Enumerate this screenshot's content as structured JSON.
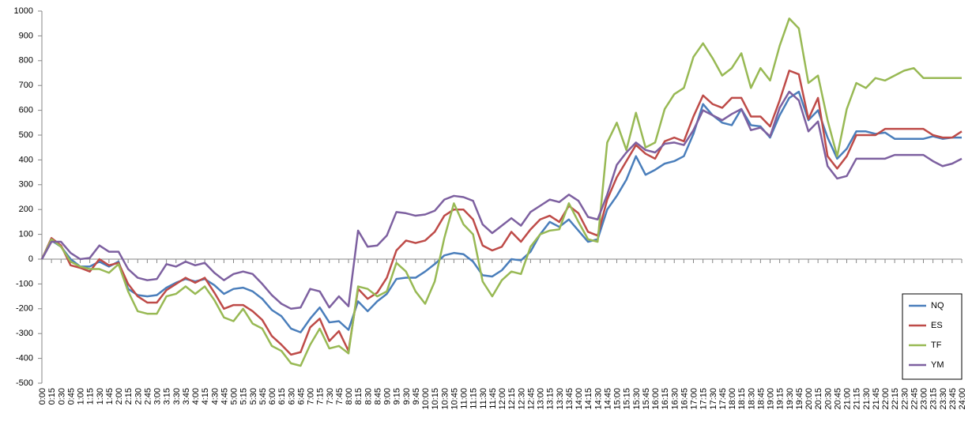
{
  "chart_data": {
    "type": "line",
    "categories": [
      "0:00",
      "0:15",
      "0:30",
      "0:45",
      "1:00",
      "1:15",
      "1:30",
      "1:45",
      "2:00",
      "2:15",
      "2:30",
      "2:45",
      "3:00",
      "3:15",
      "3:30",
      "3:45",
      "4:00",
      "4:15",
      "4:30",
      "4:45",
      "5:00",
      "5:15",
      "5:30",
      "5:45",
      "6:00",
      "6:15",
      "6:30",
      "6:45",
      "7:00",
      "7:15",
      "7:30",
      "7:45",
      "8:00",
      "8:15",
      "8:30",
      "8:45",
      "9:00",
      "9:15",
      "9:30",
      "9:45",
      "10:00",
      "10:15",
      "10:30",
      "10:45",
      "11:00",
      "11:15",
      "11:30",
      "11:45",
      "12:00",
      "12:15",
      "12:30",
      "12:45",
      "13:00",
      "13:15",
      "13:30",
      "13:45",
      "14:00",
      "14:15",
      "14:30",
      "14:45",
      "15:00",
      "15:15",
      "15:30",
      "15:45",
      "16:00",
      "16:15",
      "16:30",
      "16:45",
      "17:00",
      "17:15",
      "17:30",
      "17:45",
      "18:00",
      "18:15",
      "18:30",
      "18:45",
      "19:00",
      "19:15",
      "19:30",
      "19:45",
      "20:00",
      "20:15",
      "20:30",
      "20:45",
      "21:00",
      "21:15",
      "21:30",
      "21:45",
      "22:00",
      "22:15",
      "22:30",
      "22:45",
      "23:00",
      "23:15",
      "23:30",
      "23:45",
      "24:00"
    ],
    "series": [
      {
        "name": "NQ",
        "color": "#4a7ebb",
        "values": [
          0,
          75,
          50,
          0,
          -30,
          -30,
          -10,
          -30,
          -10,
          -120,
          -145,
          -150,
          -145,
          -115,
          -95,
          -80,
          -90,
          -80,
          -105,
          -140,
          -120,
          -115,
          -130,
          -160,
          -205,
          -230,
          -280,
          -295,
          -240,
          -195,
          -255,
          -250,
          -285,
          -170,
          -210,
          -170,
          -140,
          -80,
          -75,
          -75,
          -50,
          -20,
          15,
          25,
          20,
          -10,
          -65,
          -70,
          -45,
          0,
          -5,
          30,
          100,
          150,
          130,
          160,
          115,
          70,
          80,
          200,
          255,
          320,
          415,
          340,
          360,
          385,
          395,
          415,
          505,
          625,
          580,
          550,
          540,
          605,
          540,
          535,
          490,
          580,
          650,
          675,
          560,
          600,
          490,
          405,
          445,
          515,
          515,
          505,
          510,
          485,
          485,
          485,
          485,
          495,
          485,
          490,
          490
        ]
      },
      {
        "name": "ES",
        "color": "#be4b48",
        "values": [
          0,
          85,
          55,
          -25,
          -35,
          -50,
          0,
          -25,
          -15,
          -100,
          -150,
          -175,
          -175,
          -125,
          -100,
          -75,
          -95,
          -75,
          -135,
          -200,
          -185,
          -185,
          -210,
          -245,
          -310,
          -345,
          -385,
          -375,
          -275,
          -240,
          -330,
          -290,
          -370,
          -120,
          -160,
          -135,
          -75,
          35,
          75,
          65,
          75,
          110,
          175,
          200,
          200,
          160,
          55,
          35,
          50,
          110,
          70,
          120,
          160,
          175,
          150,
          215,
          185,
          110,
          95,
          240,
          330,
          395,
          460,
          425,
          405,
          475,
          490,
          475,
          575,
          660,
          625,
          610,
          650,
          650,
          575,
          575,
          535,
          640,
          760,
          745,
          565,
          650,
          415,
          365,
          415,
          500,
          500,
          500,
          525,
          525,
          525,
          525,
          525,
          500,
          490,
          490,
          515
        ]
      },
      {
        "name": "TF",
        "color": "#98b954",
        "values": [
          0,
          80,
          50,
          -10,
          -30,
          -40,
          -40,
          -55,
          -20,
          -130,
          -210,
          -220,
          -220,
          -150,
          -140,
          -110,
          -140,
          -110,
          -165,
          -235,
          -250,
          -200,
          -260,
          -280,
          -350,
          -370,
          -420,
          -430,
          -345,
          -280,
          -360,
          -350,
          -380,
          -110,
          -120,
          -150,
          -130,
          -15,
          -50,
          -130,
          -180,
          -90,
          85,
          225,
          140,
          100,
          -90,
          -150,
          -85,
          -50,
          -60,
          50,
          100,
          115,
          120,
          225,
          150,
          80,
          70,
          470,
          550,
          440,
          590,
          450,
          470,
          605,
          665,
          690,
          815,
          870,
          810,
          740,
          770,
          830,
          690,
          770,
          720,
          860,
          970,
          930,
          710,
          740,
          560,
          415,
          605,
          710,
          690,
          730,
          720,
          740,
          760,
          770,
          730,
          730,
          730,
          730,
          730
        ]
      },
      {
        "name": "YM",
        "color": "#7d60a0",
        "values": [
          0,
          70,
          70,
          25,
          0,
          5,
          55,
          30,
          30,
          -40,
          -75,
          -85,
          -80,
          -20,
          -30,
          -10,
          -25,
          -15,
          -55,
          -85,
          -60,
          -50,
          -60,
          -100,
          -145,
          -180,
          -200,
          -195,
          -120,
          -130,
          -195,
          -150,
          -190,
          115,
          50,
          55,
          95,
          190,
          185,
          175,
          180,
          195,
          240,
          255,
          250,
          235,
          140,
          105,
          135,
          165,
          135,
          190,
          215,
          240,
          230,
          260,
          235,
          170,
          160,
          260,
          380,
          430,
          470,
          440,
          430,
          465,
          470,
          460,
          520,
          600,
          580,
          560,
          585,
          605,
          520,
          530,
          495,
          610,
          675,
          640,
          515,
          555,
          375,
          325,
          335,
          405,
          405,
          405,
          405,
          420,
          420,
          420,
          420,
          395,
          375,
          385,
          405
        ]
      }
    ],
    "ylim": [
      -500,
      1000
    ],
    "yticks": [
      -500,
      -400,
      -300,
      -200,
      -100,
      0,
      100,
      200,
      300,
      400,
      500,
      600,
      700,
      800,
      900,
      1000
    ],
    "legend": "lower right"
  }
}
